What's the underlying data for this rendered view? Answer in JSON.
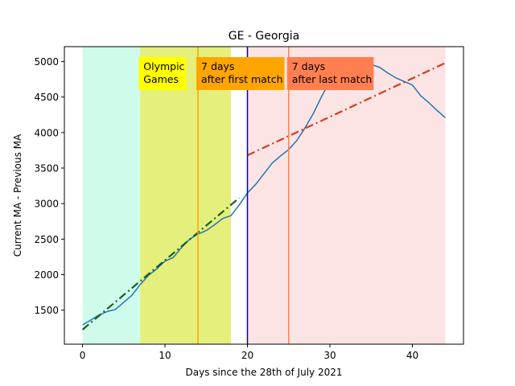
{
  "chart_data": {
    "type": "line",
    "title": "GE - Georgia",
    "xlabel": "Days since the 28th of July 2021",
    "ylabel": "Current MA - Previous MA",
    "xlim": [
      -2.2,
      46.2
    ],
    "ylim": [
      1020,
      5210
    ],
    "xticks": [
      0,
      10,
      20,
      30,
      40
    ],
    "yticks": [
      1500,
      2000,
      2500,
      3000,
      3500,
      4000,
      4500,
      5000
    ],
    "grid": false,
    "series": [
      {
        "x": [
          0,
          1,
          2,
          3,
          4,
          5,
          6,
          7,
          8,
          9,
          10,
          11,
          12,
          13,
          14,
          15,
          16,
          17,
          18,
          19,
          20,
          21,
          22,
          23,
          24,
          25,
          26,
          27,
          28,
          29,
          30,
          31,
          32,
          33,
          34,
          35,
          36,
          37,
          38,
          39,
          40,
          41,
          42,
          43,
          44
        ],
        "y": [
          1290,
          1360,
          1430,
          1480,
          1510,
          1610,
          1710,
          1860,
          1990,
          2080,
          2190,
          2240,
          2380,
          2500,
          2570,
          2620,
          2700,
          2790,
          2830,
          2980,
          3150,
          3270,
          3420,
          3570,
          3670,
          3760,
          3890,
          4070,
          4270,
          4510,
          4720,
          4800,
          4850,
          4920,
          4960,
          4960,
          4920,
          4840,
          4770,
          4720,
          4670,
          4520,
          4420,
          4310,
          4210
        ],
        "color": "#1f77b4",
        "style": "solid"
      },
      {
        "x": [
          0,
          19
        ],
        "y": [
          1225,
          3080
        ],
        "color": "#1b5e20",
        "style": "dash-dot"
      },
      {
        "x": [
          20,
          44
        ],
        "y": [
          3680,
          4980
        ],
        "color": "#d23c22",
        "style": "dash-dot"
      }
    ],
    "regions": [
      {
        "x0": 0,
        "x1": 7,
        "color": "#cffbeb"
      },
      {
        "x0": 7,
        "x1": 18,
        "color": "#e5ef7b"
      },
      {
        "x0": 20,
        "x1": 44,
        "color": "#fde4e4"
      }
    ],
    "vlines": [
      {
        "x": 14,
        "color": "#ffa500"
      },
      {
        "x": 20,
        "color": "#0000cc"
      },
      {
        "x": 25,
        "color": "#ff7f50"
      }
    ],
    "annotations": [
      {
        "lines": [
          "Olympic",
          "Games"
        ],
        "x": 7,
        "bg": "#ffff00"
      },
      {
        "lines": [
          "7 days",
          "after first match"
        ],
        "x": 14,
        "bg": "#ffa500"
      },
      {
        "lines": [
          "7 days",
          "after last match"
        ],
        "x": 25,
        "bg": "#ff7f50"
      }
    ]
  }
}
